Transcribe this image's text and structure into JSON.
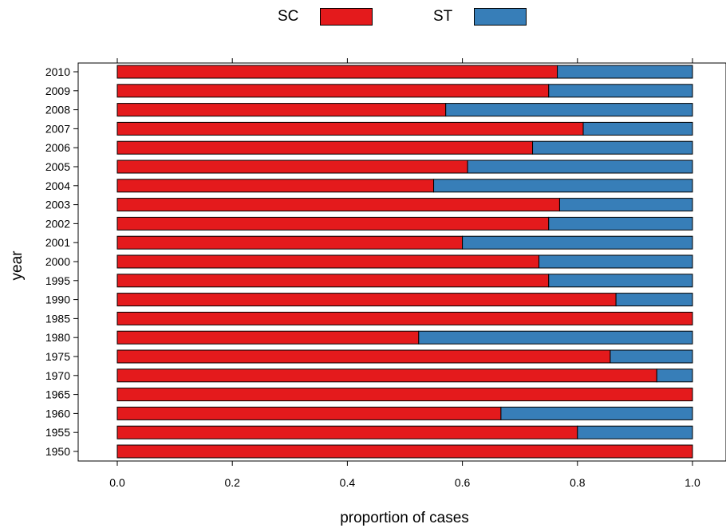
{
  "chart_data": {
    "type": "bar",
    "orientation": "horizontal",
    "stacked": true,
    "xlabel": "proportion of cases",
    "ylabel": "year",
    "xlim": [
      0,
      1
    ],
    "xticks": [
      "0.0",
      "0.2",
      "0.4",
      "0.6",
      "0.8",
      "1.0"
    ],
    "legend_position": "top",
    "categories": [
      "1950",
      "1955",
      "1960",
      "1965",
      "1970",
      "1975",
      "1980",
      "1985",
      "1990",
      "1995",
      "2000",
      "2001",
      "2002",
      "2003",
      "2004",
      "2005",
      "2006",
      "2007",
      "2008",
      "2009",
      "2010"
    ],
    "series": [
      {
        "name": "SC",
        "color": "#e41a1c",
        "values": [
          1.0,
          0.8,
          0.667,
          1.0,
          0.938,
          0.857,
          0.524,
          1.0,
          0.867,
          0.75,
          0.733,
          0.6,
          0.75,
          0.769,
          0.55,
          0.609,
          0.722,
          0.81,
          0.571,
          0.75,
          0.765
        ]
      },
      {
        "name": "ST",
        "color": "#377eb8",
        "values": [
          0.0,
          0.2,
          0.333,
          0.0,
          0.062,
          0.143,
          0.476,
          0.0,
          0.133,
          0.25,
          0.267,
          0.4,
          0.25,
          0.231,
          0.45,
          0.391,
          0.278,
          0.19,
          0.429,
          0.25,
          0.235
        ]
      }
    ]
  }
}
